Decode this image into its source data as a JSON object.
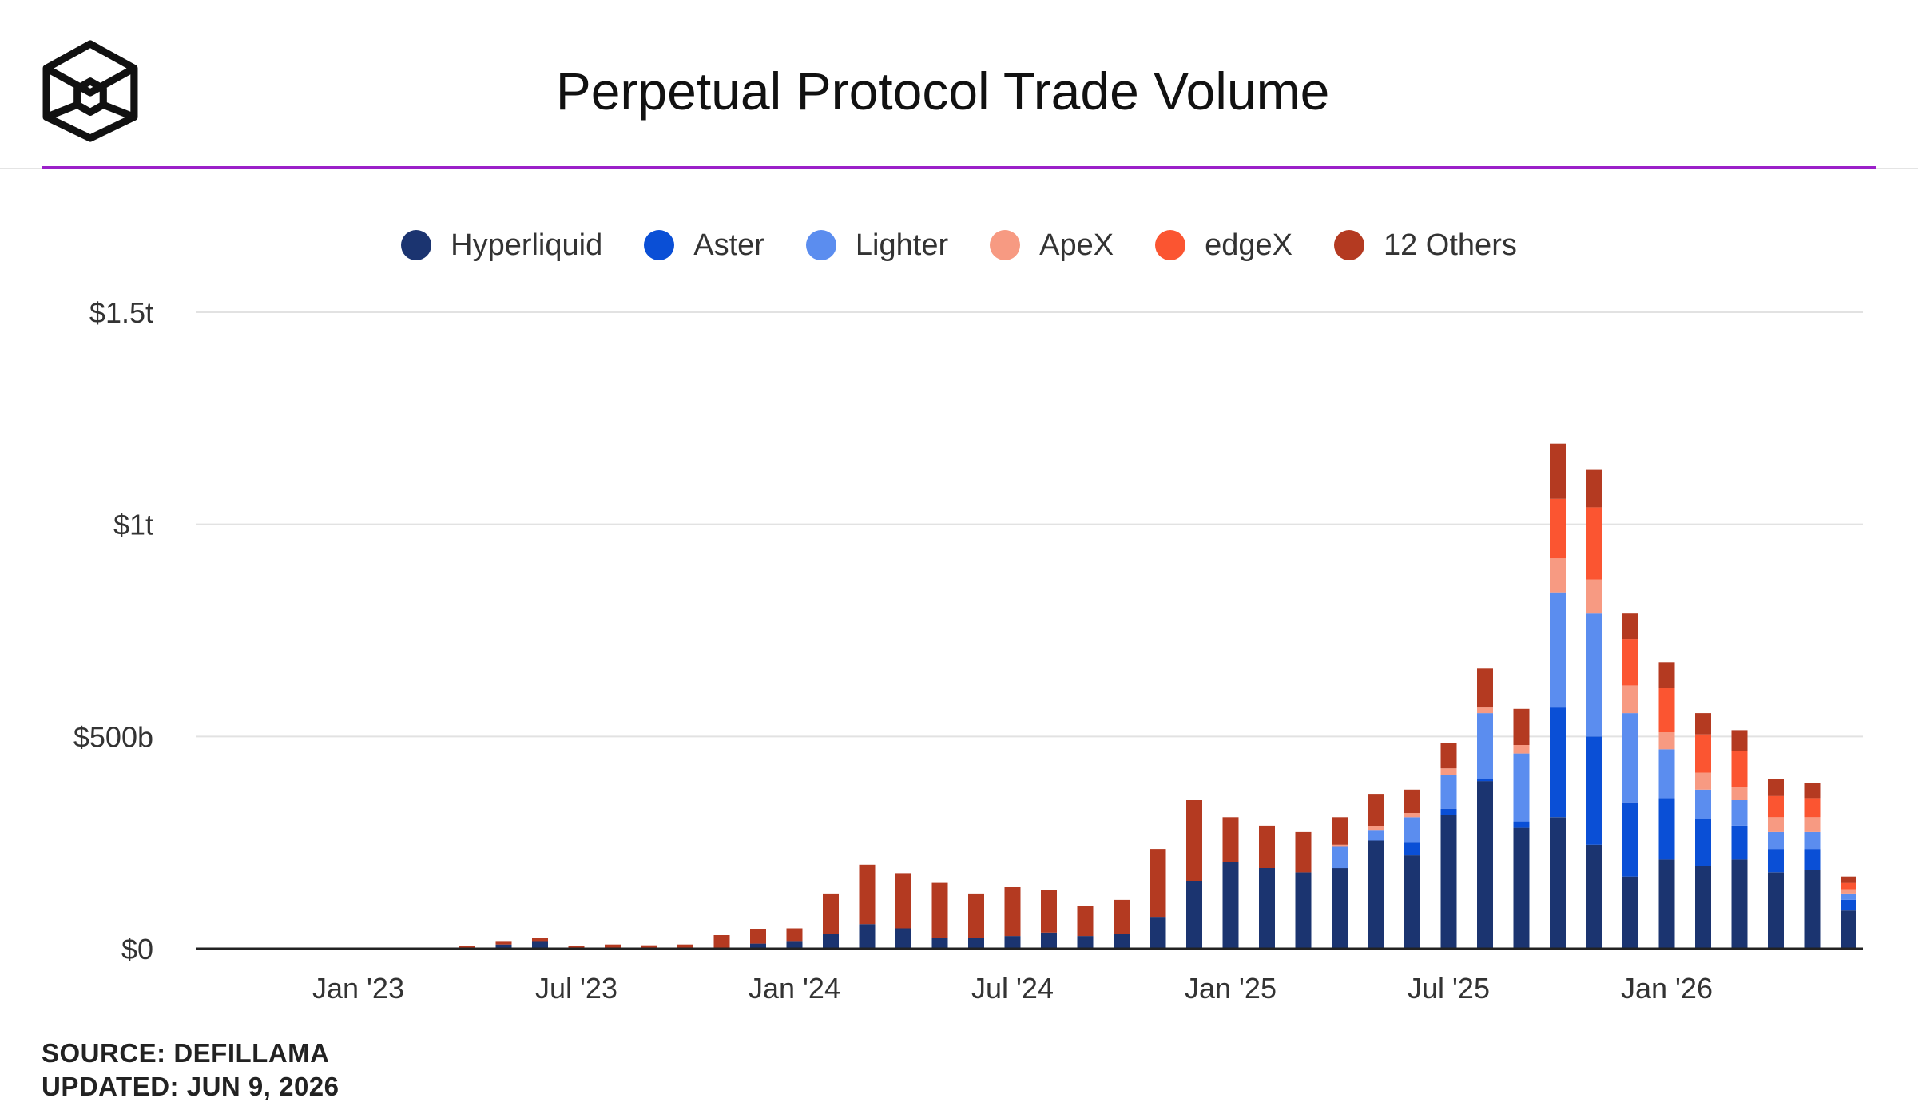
{
  "header": {
    "title": "Perpetual Protocol Trade Volume",
    "logo_icon": "cube-logo-icon"
  },
  "footer": {
    "source": "SOURCE: DEFILLAMA",
    "updated": "UPDATED: JUN 9, 2026"
  },
  "colors": {
    "accent_rule": "#9b20c9",
    "Hyperliquid": "#1b3470",
    "Aster": "#0a4fd6",
    "Lighter": "#5b8def",
    "ApeX": "#f79a82",
    "edgeX": "#fb5531",
    "12 Others": "#b43a21"
  },
  "chart_data": {
    "type": "bar",
    "stacked": true,
    "title": "Perpetual Protocol Trade Volume",
    "unit": "USD",
    "y_ticks": [
      {
        "value": 0,
        "label": "$0"
      },
      {
        "value": 500,
        "label": "$500b"
      },
      {
        "value": 1000,
        "label": "$1t"
      },
      {
        "value": 1500,
        "label": "$1.5t"
      }
    ],
    "ylim": [
      0,
      1500
    ],
    "x_ticks": [
      {
        "month": "2023-01",
        "label": "Jan '23"
      },
      {
        "month": "2023-07",
        "label": "Jul '23"
      },
      {
        "month": "2024-01",
        "label": "Jan '24"
      },
      {
        "month": "2024-07",
        "label": "Jul '24"
      },
      {
        "month": "2025-01",
        "label": "Jan '25"
      },
      {
        "month": "2025-07",
        "label": "Jul '25"
      },
      {
        "month": "2026-01",
        "label": "Jan '26"
      }
    ],
    "grid": true,
    "legend_position": "top-center",
    "categories": [
      "2023-04",
      "2023-05",
      "2023-06",
      "2023-07",
      "2023-08",
      "2023-09",
      "2023-10",
      "2023-11",
      "2023-12",
      "2024-01",
      "2024-02",
      "2024-03",
      "2024-04",
      "2024-05",
      "2024-06",
      "2024-07",
      "2024-08",
      "2024-09",
      "2024-10",
      "2024-11",
      "2024-12",
      "2025-01",
      "2025-02",
      "2025-03",
      "2025-04",
      "2025-05",
      "2025-06",
      "2025-07",
      "2025-08",
      "2025-09",
      "2025-10",
      "2025-11",
      "2025-12",
      "2026-01",
      "2026-02",
      "2026-03",
      "2026-04",
      "2026-05",
      "2026-06"
    ],
    "series": [
      {
        "name": "Hyperliquid",
        "values": [
          0,
          10,
          18,
          0,
          0,
          0,
          0,
          2,
          12,
          18,
          35,
          58,
          48,
          25,
          25,
          30,
          38,
          30,
          35,
          75,
          160,
          205,
          190,
          180,
          190,
          255,
          220,
          315,
          395,
          285,
          310,
          245,
          170,
          210,
          195,
          210,
          180,
          185,
          90
        ]
      },
      {
        "name": "Aster",
        "values": [
          0,
          0,
          0,
          0,
          0,
          0,
          0,
          0,
          0,
          0,
          0,
          0,
          0,
          0,
          0,
          0,
          0,
          0,
          0,
          0,
          0,
          0,
          0,
          0,
          0,
          0,
          30,
          15,
          5,
          15,
          260,
          255,
          175,
          145,
          110,
          80,
          55,
          50,
          25
        ]
      },
      {
        "name": "Lighter",
        "values": [
          0,
          0,
          0,
          0,
          0,
          0,
          0,
          0,
          0,
          0,
          0,
          0,
          0,
          0,
          0,
          0,
          0,
          0,
          0,
          0,
          0,
          0,
          0,
          0,
          50,
          25,
          60,
          80,
          155,
          160,
          270,
          290,
          210,
          115,
          70,
          60,
          40,
          40,
          15
        ]
      },
      {
        "name": "ApeX",
        "values": [
          0,
          0,
          0,
          0,
          0,
          0,
          0,
          0,
          0,
          0,
          0,
          0,
          0,
          0,
          0,
          0,
          0,
          0,
          0,
          0,
          0,
          0,
          0,
          0,
          5,
          10,
          10,
          15,
          15,
          20,
          80,
          80,
          65,
          40,
          40,
          30,
          35,
          35,
          10
        ]
      },
      {
        "name": "edgeX",
        "values": [
          0,
          0,
          0,
          0,
          0,
          0,
          0,
          0,
          0,
          0,
          0,
          0,
          0,
          0,
          0,
          0,
          0,
          0,
          0,
          0,
          0,
          0,
          0,
          0,
          0,
          0,
          0,
          0,
          0,
          0,
          140,
          170,
          110,
          105,
          90,
          85,
          50,
          45,
          15
        ]
      },
      {
        "name": "12 Others",
        "values": [
          6,
          8,
          8,
          6,
          10,
          8,
          10,
          30,
          35,
          30,
          95,
          140,
          130,
          130,
          105,
          115,
          100,
          70,
          80,
          160,
          190,
          105,
          100,
          95,
          65,
          75,
          55,
          60,
          90,
          85,
          130,
          90,
          60,
          60,
          50,
          50,
          40,
          35,
          15
        ]
      }
    ]
  }
}
